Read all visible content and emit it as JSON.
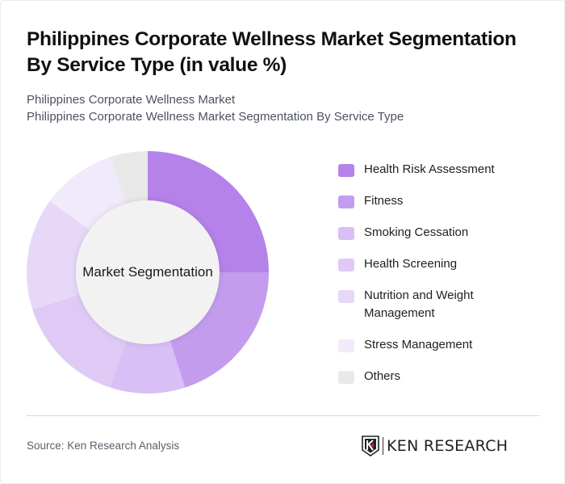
{
  "header": {
    "title": "Philippines Corporate Wellness Market Segmentation By Service Type (in value %)",
    "subtitle_line1": "Philippines Corporate Wellness Market",
    "subtitle_line2": "Philippines Corporate Wellness Market Segmentation By Service Type"
  },
  "chart": {
    "center_label": "Market Segmentation",
    "inner_color": "#f2f2f2"
  },
  "legend": {
    "items": [
      {
        "label": "Health Risk Assessment",
        "color": "#b582ea"
      },
      {
        "label": "Fitness",
        "color": "#c49cee"
      },
      {
        "label": "Smoking Cessation",
        "color": "#d8bff6"
      },
      {
        "label": "Health Screening",
        "color": "#dfcaf6"
      },
      {
        "label": "Nutrition and Weight Management",
        "color": "#e7d8f8"
      },
      {
        "label": "Stress Management",
        "color": "#f1eafb"
      },
      {
        "label": "Others",
        "color": "#e9e9e9"
      }
    ]
  },
  "footer": {
    "source": "Source: Ken Research Analysis",
    "logo_text": "KEN RESEARCH"
  },
  "chart_data": {
    "type": "pie",
    "subtype": "donut",
    "title": "Philippines Corporate Wellness Market Segmentation By Service Type (in value %)",
    "center_label": "Market Segmentation",
    "categories": [
      "Health Risk Assessment",
      "Fitness",
      "Smoking Cessation",
      "Health Screening",
      "Nutrition and Weight Management",
      "Stress Management",
      "Others"
    ],
    "values": [
      25,
      20,
      10,
      15,
      15,
      10,
      5
    ],
    "colors": [
      "#b582ea",
      "#c49cee",
      "#d8bff6",
      "#dfcaf6",
      "#e7d8f8",
      "#f1eafb",
      "#e9e9e9"
    ],
    "unit": "%",
    "start_angle_deg": 0,
    "direction": "clockwise",
    "legend_position": "right"
  }
}
